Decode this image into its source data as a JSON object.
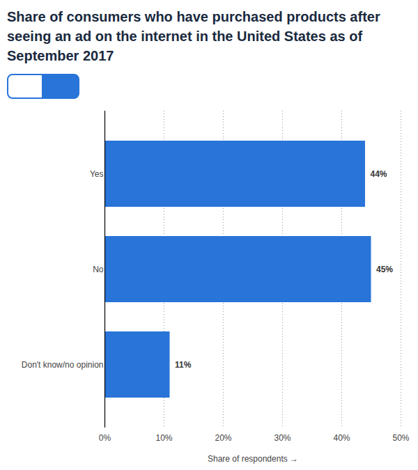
{
  "chart_data": {
    "type": "bar",
    "orientation": "horizontal",
    "title": "Share of consumers who have purchased products after seeing an ad on the internet in the United States as of September 2017",
    "categories": [
      "Yes",
      "No",
      "Don't know/no opinion"
    ],
    "values": [
      44,
      45,
      11
    ],
    "value_labels": [
      "44%",
      "45%",
      "11%"
    ],
    "data_labels": true,
    "color": "#2874d9",
    "xlabel": "Share of respondents",
    "xlim": [
      0,
      50
    ],
    "xticks": [
      {
        "value": 0,
        "label": "0%"
      },
      {
        "value": 10,
        "label": "10%"
      },
      {
        "value": 20,
        "label": "20%"
      },
      {
        "value": 30,
        "label": "30%"
      },
      {
        "value": 40,
        "label": "40%"
      },
      {
        "value": 50,
        "label": "50%"
      }
    ],
    "grid": true
  }
}
